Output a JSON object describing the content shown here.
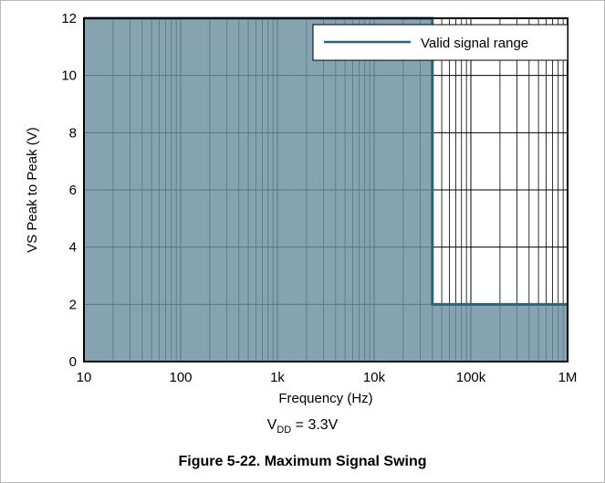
{
  "chart_data": {
    "type": "area",
    "title": "",
    "xlabel": "Frequency (Hz)",
    "ylabel": "VS Peak to Peak (V)",
    "xscale": "log",
    "xlim": [
      10,
      1000000
    ],
    "ylim": [
      0,
      12
    ],
    "xticks": [
      10,
      100,
      1000,
      10000,
      100000,
      1000000
    ],
    "xtick_labels": [
      "10",
      "100",
      "1k",
      "10k",
      "100k",
      "1M"
    ],
    "yticks": [
      0,
      2,
      4,
      6,
      8,
      10,
      12
    ],
    "ytick_labels": [
      "0",
      "2",
      "4",
      "6",
      "8",
      "10",
      "12"
    ],
    "grid": true,
    "legend_position": "top-right",
    "fill_color": "#6a8fa0",
    "line_color": "#2e6378",
    "series": [
      {
        "name": "Valid signal range",
        "x": [
          10,
          40000,
          40000,
          1000000
        ],
        "y": [
          12,
          12,
          2,
          2
        ]
      }
    ]
  },
  "annotation": {
    "prefix": "V",
    "subscript": "DD",
    "suffix": " = 3.3V"
  },
  "caption": "Figure 5-22. Maximum Signal Swing"
}
